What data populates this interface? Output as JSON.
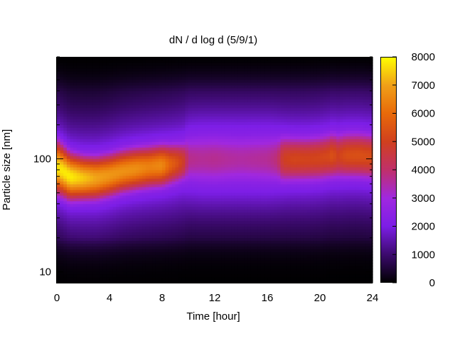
{
  "chart_data": {
    "type": "heatmap",
    "title": "dN / d log d (5/9/1)",
    "xlabel": "Time [hour]",
    "ylabel": "Particle size [nm]",
    "xlim": [
      0,
      24
    ],
    "ylim": [
      8,
      800
    ],
    "yscale": "log",
    "x_ticks": [
      0,
      4,
      8,
      12,
      16,
      20,
      24
    ],
    "x_tick_labels": [
      "0",
      "4",
      "8",
      "12",
      "16",
      "20",
      "24"
    ],
    "y_ticks": [
      10,
      100
    ],
    "y_tick_labels": [
      "10",
      "100"
    ],
    "colorbar": {
      "min": 0,
      "max": 8000,
      "ticks": [
        0,
        1000,
        2000,
        3000,
        4000,
        5000,
        6000,
        7000,
        8000
      ],
      "tick_labels": [
        "0",
        "1000",
        "2000",
        "3000",
        "4000",
        "5000",
        "6000",
        "7000",
        "8000"
      ],
      "colormap": [
        "#000000",
        "#3c0a6e",
        "#7c1ee6",
        "#a028e0",
        "#c0306a",
        "#d0401e",
        "#e86a0a",
        "#f0a018",
        "#ffff00"
      ]
    },
    "time_profile": {
      "hours": [
        0,
        1,
        2,
        3,
        4,
        5,
        6,
        7,
        8,
        8.6,
        9,
        9.6,
        10,
        11,
        12,
        13,
        14,
        15,
        16,
        16.8,
        17.2,
        18,
        19,
        20,
        20.6,
        21,
        21.3,
        22,
        23,
        24
      ],
      "peak_size_nm": [
        85,
        70,
        68,
        68,
        72,
        78,
        82,
        85,
        88,
        90,
        92,
        95,
        100,
        100,
        100,
        100,
        100,
        100,
        100,
        100,
        100,
        100,
        100,
        102,
        105,
        108,
        106,
        108,
        108,
        105
      ],
      "peak_value": [
        7200,
        7300,
        6900,
        6500,
        6300,
        6200,
        6150,
        5900,
        6050,
        5300,
        5000,
        4400,
        3200,
        3100,
        3150,
        3050,
        3000,
        3050,
        3100,
        3400,
        4400,
        4600,
        4550,
        4600,
        4650,
        4900,
        4450,
        4800,
        4850,
        4750
      ],
      "log_width": [
        0.18,
        0.16,
        0.15,
        0.15,
        0.15,
        0.15,
        0.15,
        0.15,
        0.15,
        0.15,
        0.15,
        0.15,
        0.2,
        0.22,
        0.22,
        0.22,
        0.22,
        0.22,
        0.22,
        0.2,
        0.18,
        0.17,
        0.17,
        0.17,
        0.17,
        0.17,
        0.17,
        0.17,
        0.17,
        0.17
      ]
    }
  }
}
